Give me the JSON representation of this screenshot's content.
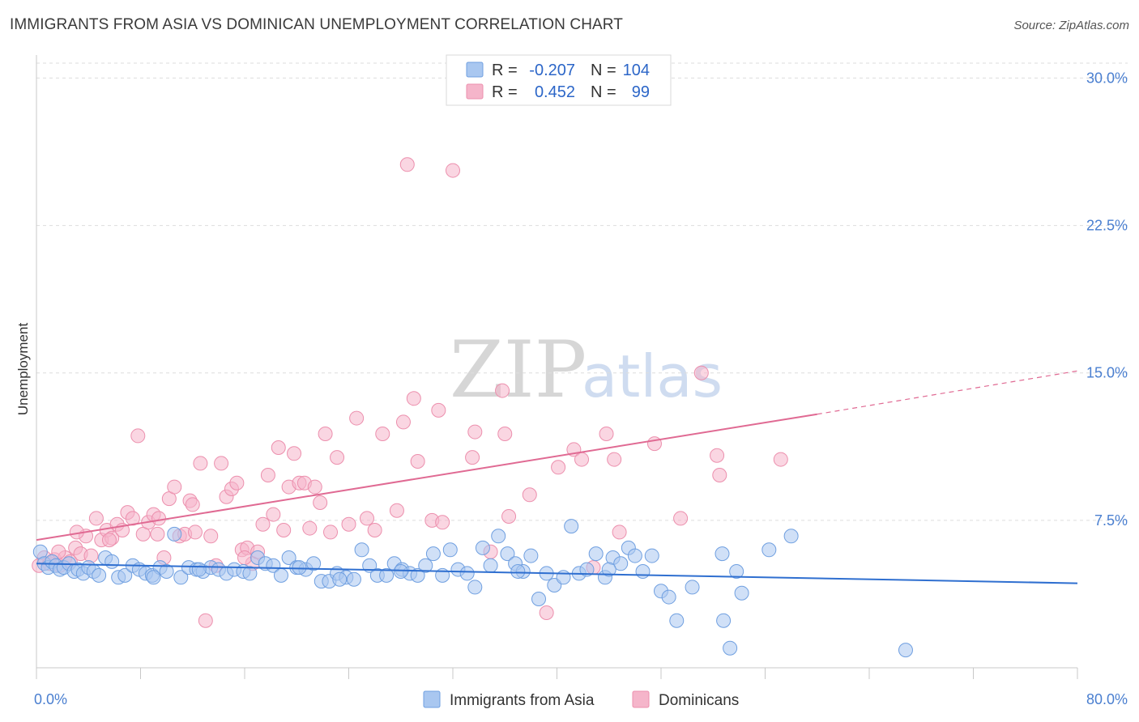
{
  "title": "IMMIGRANTS FROM ASIA VS DOMINICAN UNEMPLOYMENT CORRELATION CHART",
  "source": "Source: ZipAtlas.com",
  "watermark": {
    "zip": "ZIP",
    "atlas": "atlas"
  },
  "colors": {
    "blue_fill": "#a9c7f0",
    "blue_stroke": "#6f9fe0",
    "blue_line": "#2f6fd0",
    "pink_fill": "#f5b5ca",
    "pink_stroke": "#ec8fad",
    "pink_line": "#e06a93",
    "axis_label": "#4a7fd0",
    "grid": "#dddddd"
  },
  "legend": {
    "rows": [
      {
        "r_label": "R =",
        "r_value": "-0.207",
        "n_label": "N =",
        "n_value": "104"
      },
      {
        "r_label": "R =",
        "r_value": "0.452",
        "n_label": "N =",
        "n_value": "99"
      }
    ]
  },
  "bottom_legend": [
    "Immigrants from Asia",
    "Dominicans"
  ],
  "chart_data": {
    "type": "scatter",
    "ylabel": "Unemployment",
    "xlabel": "",
    "xlim": [
      0,
      80
    ],
    "ylim": [
      0,
      31.5
    ],
    "x_tick_labels": [
      "0.0%",
      "80.0%"
    ],
    "y_tick_labels": [
      "7.5%",
      "15.0%",
      "22.5%",
      "30.0%"
    ],
    "y_ticks": [
      7.5,
      15.0,
      22.5,
      30.0
    ],
    "grid": true,
    "series": [
      {
        "name": "Immigrants from Asia",
        "r": -0.207,
        "n": 104,
        "trend": {
          "x0": 0,
          "y0": 5.3,
          "x1": 80,
          "y1": 4.3,
          "dashed_from": null
        },
        "points": [
          [
            0.3,
            5.9
          ],
          [
            0.6,
            5.3
          ],
          [
            0.9,
            5.1
          ],
          [
            1.2,
            5.4
          ],
          [
            1.5,
            5.2
          ],
          [
            1.8,
            5.0
          ],
          [
            2.1,
            5.1
          ],
          [
            2.5,
            5.3
          ],
          [
            2.9,
            4.9
          ],
          [
            3.2,
            5.0
          ],
          [
            3.6,
            4.8
          ],
          [
            4.0,
            5.1
          ],
          [
            4.4,
            4.9
          ],
          [
            4.8,
            4.7
          ],
          [
            5.3,
            5.6
          ],
          [
            5.8,
            5.4
          ],
          [
            6.3,
            4.6
          ],
          [
            6.8,
            4.7
          ],
          [
            7.4,
            5.2
          ],
          [
            7.9,
            5.0
          ],
          [
            8.4,
            4.8
          ],
          [
            8.9,
            4.7
          ],
          [
            9.5,
            5.1
          ],
          [
            10.0,
            4.9
          ],
          [
            10.6,
            6.8
          ],
          [
            11.1,
            4.6
          ],
          [
            11.7,
            5.1
          ],
          [
            12.3,
            5.0
          ],
          [
            12.8,
            4.9
          ],
          [
            13.4,
            5.1
          ],
          [
            14.0,
            5.0
          ],
          [
            14.6,
            4.8
          ],
          [
            15.2,
            5.0
          ],
          [
            15.9,
            4.9
          ],
          [
            16.4,
            4.8
          ],
          [
            17.0,
            5.6
          ],
          [
            17.6,
            5.3
          ],
          [
            18.2,
            5.2
          ],
          [
            18.8,
            4.7
          ],
          [
            19.4,
            5.6
          ],
          [
            20.0,
            5.1
          ],
          [
            20.7,
            5.0
          ],
          [
            21.3,
            5.3
          ],
          [
            21.9,
            4.4
          ],
          [
            22.5,
            4.4
          ],
          [
            23.1,
            4.8
          ],
          [
            23.8,
            4.6
          ],
          [
            24.4,
            4.5
          ],
          [
            25.0,
            6.0
          ],
          [
            25.6,
            5.2
          ],
          [
            26.2,
            4.7
          ],
          [
            26.9,
            4.7
          ],
          [
            27.5,
            5.3
          ],
          [
            28.1,
            5.0
          ],
          [
            28.7,
            4.8
          ],
          [
            29.3,
            4.7
          ],
          [
            29.9,
            5.2
          ],
          [
            30.5,
            5.8
          ],
          [
            31.2,
            4.7
          ],
          [
            31.8,
            6.0
          ],
          [
            32.4,
            5.0
          ],
          [
            33.1,
            4.8
          ],
          [
            33.7,
            4.1
          ],
          [
            34.3,
            6.1
          ],
          [
            34.9,
            5.2
          ],
          [
            35.5,
            6.7
          ],
          [
            36.2,
            5.8
          ],
          [
            36.8,
            5.3
          ],
          [
            37.4,
            4.9
          ],
          [
            38.0,
            5.7
          ],
          [
            38.6,
            3.5
          ],
          [
            39.2,
            4.8
          ],
          [
            39.8,
            4.2
          ],
          [
            40.5,
            4.6
          ],
          [
            41.1,
            7.2
          ],
          [
            41.7,
            4.8
          ],
          [
            42.3,
            5.0
          ],
          [
            43.0,
            5.8
          ],
          [
            43.7,
            4.6
          ],
          [
            44.3,
            5.6
          ],
          [
            44.9,
            5.3
          ],
          [
            45.5,
            6.1
          ],
          [
            46.0,
            5.7
          ],
          [
            46.6,
            4.9
          ],
          [
            47.3,
            5.7
          ],
          [
            48.0,
            3.9
          ],
          [
            48.6,
            3.6
          ],
          [
            49.2,
            2.4
          ],
          [
            50.4,
            4.1
          ],
          [
            52.7,
            5.8
          ],
          [
            52.8,
            2.4
          ],
          [
            53.3,
            1.0
          ],
          [
            53.8,
            4.9
          ],
          [
            54.2,
            3.8
          ],
          [
            56.3,
            6.0
          ],
          [
            58.0,
            6.7
          ],
          [
            66.8,
            0.9
          ],
          [
            23.3,
            4.5
          ],
          [
            12.5,
            5.0
          ],
          [
            9.0,
            4.6
          ],
          [
            20.2,
            5.1
          ],
          [
            28.0,
            4.9
          ],
          [
            37.0,
            4.9
          ],
          [
            44.0,
            5.0
          ]
        ]
      },
      {
        "name": "Dominicans",
        "r": 0.452,
        "n": 99,
        "trend": {
          "x0": 0,
          "y0": 6.5,
          "x1": 60,
          "y1": 12.9,
          "dashed_from": 60,
          "dash_x1": 80,
          "dash_y1": 15.1
        },
        "points": [
          [
            0.2,
            5.2
          ],
          [
            0.6,
            5.6
          ],
          [
            1.0,
            5.3
          ],
          [
            1.4,
            5.5
          ],
          [
            1.8,
            5.2
          ],
          [
            2.2,
            5.6
          ],
          [
            2.6,
            5.4
          ],
          [
            3.0,
            6.1
          ],
          [
            3.4,
            5.8
          ],
          [
            3.8,
            6.7
          ],
          [
            4.2,
            5.7
          ],
          [
            4.6,
            7.6
          ],
          [
            5.0,
            6.5
          ],
          [
            5.4,
            7.0
          ],
          [
            5.8,
            6.6
          ],
          [
            6.2,
            7.3
          ],
          [
            6.6,
            7.0
          ],
          [
            7.0,
            7.9
          ],
          [
            7.4,
            7.6
          ],
          [
            7.8,
            11.8
          ],
          [
            8.2,
            6.8
          ],
          [
            8.6,
            7.4
          ],
          [
            9.0,
            7.8
          ],
          [
            9.4,
            7.6
          ],
          [
            9.8,
            5.6
          ],
          [
            10.2,
            8.6
          ],
          [
            10.6,
            9.2
          ],
          [
            11.0,
            6.7
          ],
          [
            11.4,
            6.8
          ],
          [
            11.8,
            8.5
          ],
          [
            12.2,
            6.9
          ],
          [
            12.6,
            10.4
          ],
          [
            13.0,
            2.4
          ],
          [
            13.4,
            6.7
          ],
          [
            13.8,
            5.2
          ],
          [
            14.2,
            10.4
          ],
          [
            14.6,
            8.7
          ],
          [
            15.0,
            9.1
          ],
          [
            15.4,
            9.4
          ],
          [
            15.8,
            6.0
          ],
          [
            16.2,
            6.1
          ],
          [
            16.6,
            5.3
          ],
          [
            17.0,
            5.9
          ],
          [
            17.4,
            7.3
          ],
          [
            17.8,
            9.8
          ],
          [
            18.2,
            7.8
          ],
          [
            18.6,
            11.2
          ],
          [
            19.0,
            7.0
          ],
          [
            19.4,
            9.2
          ],
          [
            19.8,
            10.9
          ],
          [
            20.2,
            9.4
          ],
          [
            20.6,
            9.4
          ],
          [
            21.0,
            7.1
          ],
          [
            21.4,
            9.2
          ],
          [
            21.8,
            8.4
          ],
          [
            22.2,
            11.9
          ],
          [
            22.6,
            6.9
          ],
          [
            23.1,
            10.7
          ],
          [
            24.0,
            7.3
          ],
          [
            24.6,
            12.7
          ],
          [
            25.4,
            7.6
          ],
          [
            26.6,
            11.9
          ],
          [
            27.7,
            8.0
          ],
          [
            28.2,
            12.5
          ],
          [
            28.5,
            25.6
          ],
          [
            29.0,
            13.7
          ],
          [
            29.3,
            10.5
          ],
          [
            30.4,
            7.5
          ],
          [
            30.9,
            13.1
          ],
          [
            31.2,
            7.4
          ],
          [
            32.0,
            25.3
          ],
          [
            33.5,
            10.7
          ],
          [
            33.7,
            12.0
          ],
          [
            34.9,
            5.9
          ],
          [
            35.8,
            14.1
          ],
          [
            36.0,
            11.9
          ],
          [
            36.3,
            7.7
          ],
          [
            37.9,
            8.8
          ],
          [
            39.2,
            2.8
          ],
          [
            40.1,
            10.2
          ],
          [
            41.3,
            11.1
          ],
          [
            41.9,
            10.6
          ],
          [
            42.8,
            5.1
          ],
          [
            43.8,
            11.9
          ],
          [
            44.4,
            10.6
          ],
          [
            44.8,
            6.9
          ],
          [
            47.5,
            11.4
          ],
          [
            49.5,
            7.6
          ],
          [
            51.1,
            15.0
          ],
          [
            52.3,
            10.8
          ],
          [
            52.5,
            9.8
          ],
          [
            57.2,
            10.6
          ],
          [
            5.6,
            6.5
          ],
          [
            16.0,
            5.6
          ],
          [
            26.0,
            7.0
          ],
          [
            3.1,
            6.9
          ],
          [
            12.0,
            8.3
          ],
          [
            1.7,
            5.9
          ],
          [
            9.3,
            6.8
          ]
        ]
      }
    ]
  }
}
